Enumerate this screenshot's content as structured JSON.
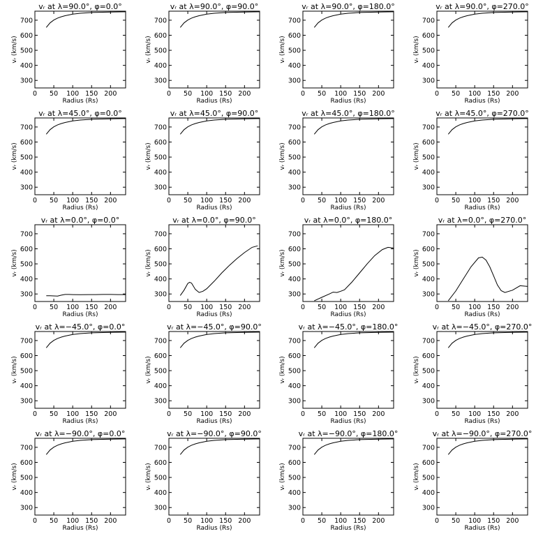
{
  "figure": {
    "xlabel": "Radius (Rs)",
    "ylabel": "vᵣ (km/s)",
    "xticks": [
      0,
      50,
      100,
      150,
      200
    ],
    "yticks": [
      300,
      400,
      500,
      600,
      700
    ],
    "xlim": [
      0,
      240
    ],
    "ylim": [
      250,
      760
    ]
  },
  "chart_data": [
    {
      "type": "line",
      "title": "vᵣ at λ=90.0°, φ=0.0°",
      "xlabel": "Radius (Rs)",
      "ylabel": "vᵣ (km/s)",
      "xlim": [
        0,
        240
      ],
      "ylim": [
        250,
        760
      ],
      "grid": false,
      "series": [
        {
          "x": [
            30,
            40,
            50,
            60,
            70,
            80,
            100,
            120,
            150,
            180,
            210,
            240
          ],
          "y": [
            652,
            682,
            701,
            714,
            723,
            730,
            740,
            746,
            751,
            753,
            755,
            756
          ]
        }
      ]
    },
    {
      "type": "line",
      "title": "vᵣ at λ=90.0°, φ=90.0°",
      "xlabel": "Radius (Rs)",
      "ylabel": "vᵣ (km/s)",
      "xlim": [
        0,
        240
      ],
      "ylim": [
        250,
        760
      ],
      "grid": false,
      "series": [
        {
          "x": [
            30,
            40,
            50,
            60,
            70,
            80,
            100,
            120,
            150,
            180,
            210,
            240
          ],
          "y": [
            652,
            682,
            701,
            714,
            723,
            730,
            740,
            746,
            751,
            753,
            755,
            756
          ]
        }
      ]
    },
    {
      "type": "line",
      "title": "vᵣ at λ=90.0°, φ=180.0°",
      "xlabel": "Radius (Rs)",
      "ylabel": "vᵣ (km/s)",
      "xlim": [
        0,
        240
      ],
      "ylim": [
        250,
        760
      ],
      "grid": false,
      "series": [
        {
          "x": [
            30,
            40,
            50,
            60,
            70,
            80,
            100,
            120,
            150,
            180,
            210,
            240
          ],
          "y": [
            652,
            682,
            701,
            714,
            723,
            730,
            740,
            746,
            751,
            753,
            755,
            756
          ]
        }
      ]
    },
    {
      "type": "line",
      "title": "vᵣ at λ=90.0°, φ=270.0°",
      "xlabel": "Radius (Rs)",
      "ylabel": "vᵣ (km/s)",
      "xlim": [
        0,
        240
      ],
      "ylim": [
        250,
        760
      ],
      "grid": false,
      "series": [
        {
          "x": [
            30,
            40,
            50,
            60,
            70,
            80,
            100,
            120,
            150,
            180,
            210,
            240
          ],
          "y": [
            652,
            682,
            701,
            714,
            723,
            730,
            740,
            746,
            751,
            753,
            755,
            756
          ]
        }
      ]
    },
    {
      "type": "line",
      "title": "vᵣ at λ=45.0°, φ=0.0°",
      "xlabel": "Radius (Rs)",
      "ylabel": "vᵣ (km/s)",
      "xlim": [
        0,
        240
      ],
      "ylim": [
        250,
        760
      ],
      "grid": false,
      "series": [
        {
          "x": [
            30,
            40,
            50,
            60,
            70,
            80,
            100,
            120,
            150,
            180,
            210,
            240
          ],
          "y": [
            652,
            682,
            701,
            714,
            723,
            730,
            740,
            746,
            751,
            753,
            755,
            756
          ]
        }
      ]
    },
    {
      "type": "line",
      "title": "vᵣ at λ=45.0°, φ=90.0°",
      "xlabel": "Radius (Rs)",
      "ylabel": "vᵣ (km/s)",
      "xlim": [
        0,
        240
      ],
      "ylim": [
        250,
        760
      ],
      "grid": false,
      "series": [
        {
          "x": [
            30,
            40,
            50,
            60,
            70,
            80,
            100,
            120,
            150,
            180,
            210,
            240
          ],
          "y": [
            652,
            682,
            701,
            714,
            723,
            730,
            740,
            746,
            751,
            753,
            755,
            756
          ]
        }
      ]
    },
    {
      "type": "line",
      "title": "vᵣ at λ=45.0°, φ=180.0°",
      "xlabel": "Radius (Rs)",
      "ylabel": "vᵣ (km/s)",
      "xlim": [
        0,
        240
      ],
      "ylim": [
        250,
        760
      ],
      "grid": false,
      "series": [
        {
          "x": [
            30,
            40,
            50,
            60,
            70,
            80,
            100,
            120,
            150,
            180,
            210,
            240
          ],
          "y": [
            652,
            682,
            701,
            714,
            723,
            730,
            740,
            746,
            751,
            753,
            755,
            756
          ]
        }
      ]
    },
    {
      "type": "line",
      "title": "vᵣ at λ=45.0°, φ=270.0°",
      "xlabel": "Radius (Rs)",
      "ylabel": "vᵣ (km/s)",
      "xlim": [
        0,
        240
      ],
      "ylim": [
        250,
        760
      ],
      "grid": false,
      "series": [
        {
          "x": [
            30,
            40,
            50,
            60,
            70,
            80,
            100,
            120,
            150,
            180,
            210,
            240
          ],
          "y": [
            652,
            682,
            701,
            714,
            723,
            730,
            740,
            746,
            751,
            753,
            755,
            756
          ]
        }
      ]
    },
    {
      "type": "line",
      "title": "vᵣ at λ=0.0°, φ=0.0°",
      "xlabel": "Radius (Rs)",
      "ylabel": "vᵣ (km/s)",
      "xlim": [
        0,
        240
      ],
      "ylim": [
        250,
        760
      ],
      "grid": false,
      "series": [
        {
          "x": [
            30,
            40,
            50,
            60,
            70,
            80,
            90,
            100,
            120,
            140,
            160,
            180,
            200,
            220,
            240
          ],
          "y": [
            288,
            288,
            287,
            286,
            292,
            297,
            297,
            296,
            295,
            296,
            296,
            297,
            297,
            296,
            296
          ]
        }
      ]
    },
    {
      "type": "line",
      "title": "vᵣ at λ=0.0°, φ=90.0°",
      "xlabel": "Radius (Rs)",
      "ylabel": "vᵣ (km/s)",
      "xlim": [
        0,
        240
      ],
      "ylim": [
        250,
        760
      ],
      "grid": false,
      "series": [
        {
          "x": [
            30,
            40,
            50,
            55,
            60,
            70,
            80,
            90,
            100,
            120,
            140,
            160,
            180,
            200,
            220,
            235
          ],
          "y": [
            290,
            325,
            370,
            378,
            372,
            330,
            310,
            318,
            335,
            385,
            440,
            490,
            535,
            575,
            610,
            620
          ]
        }
      ]
    },
    {
      "type": "line",
      "title": "vᵣ at λ=0.0°, φ=180.0°",
      "xlabel": "Radius (Rs)",
      "ylabel": "vᵣ (km/s)",
      "xlim": [
        0,
        240
      ],
      "ylim": [
        250,
        760
      ],
      "grid": false,
      "series": [
        {
          "x": [
            30,
            50,
            70,
            80,
            90,
            100,
            110,
            130,
            150,
            170,
            190,
            210,
            225,
            240
          ],
          "y": [
            255,
            278,
            300,
            312,
            310,
            318,
            328,
            380,
            440,
            500,
            555,
            595,
            610,
            605
          ]
        }
      ]
    },
    {
      "type": "line",
      "title": "vᵣ at λ=0.0°, φ=270.0°",
      "xlabel": "Radius (Rs)",
      "ylabel": "vᵣ (km/s)",
      "xlim": [
        0,
        240
      ],
      "ylim": [
        250,
        760
      ],
      "grid": false,
      "series": [
        {
          "x": [
            30,
            50,
            70,
            90,
            110,
            120,
            130,
            140,
            150,
            160,
            170,
            180,
            200,
            220,
            240
          ],
          "y": [
            255,
            320,
            400,
            480,
            540,
            545,
            525,
            480,
            420,
            360,
            322,
            310,
            325,
            355,
            350
          ]
        }
      ]
    },
    {
      "type": "line",
      "title": "vᵣ at λ=−45.0°, φ=0.0°",
      "xlabel": "Radius (Rs)",
      "ylabel": "vᵣ (km/s)",
      "xlim": [
        0,
        240
      ],
      "ylim": [
        250,
        760
      ],
      "grid": false,
      "series": [
        {
          "x": [
            30,
            40,
            50,
            60,
            70,
            80,
            100,
            120,
            150,
            180,
            210,
            240
          ],
          "y": [
            652,
            682,
            701,
            714,
            723,
            730,
            740,
            746,
            751,
            753,
            755,
            756
          ]
        }
      ]
    },
    {
      "type": "line",
      "title": "vᵣ at λ=−45.0°, φ=90.0°",
      "xlabel": "Radius (Rs)",
      "ylabel": "vᵣ (km/s)",
      "xlim": [
        0,
        240
      ],
      "ylim": [
        250,
        760
      ],
      "grid": false,
      "series": [
        {
          "x": [
            30,
            40,
            50,
            60,
            70,
            80,
            100,
            120,
            150,
            180,
            210,
            240
          ],
          "y": [
            652,
            682,
            701,
            714,
            723,
            730,
            740,
            746,
            751,
            753,
            755,
            756
          ]
        }
      ]
    },
    {
      "type": "line",
      "title": "vᵣ at λ=−45.0°, φ=180.0°",
      "xlabel": "Radius (Rs)",
      "ylabel": "vᵣ (km/s)",
      "xlim": [
        0,
        240
      ],
      "ylim": [
        250,
        760
      ],
      "grid": false,
      "series": [
        {
          "x": [
            30,
            40,
            50,
            60,
            70,
            80,
            100,
            120,
            150,
            180,
            210,
            240
          ],
          "y": [
            652,
            682,
            701,
            714,
            723,
            730,
            740,
            746,
            751,
            753,
            755,
            756
          ]
        }
      ]
    },
    {
      "type": "line",
      "title": "vᵣ at λ=−45.0°, φ=270.0°",
      "xlabel": "Radius (Rs)",
      "ylabel": "vᵣ (km/s)",
      "xlim": [
        0,
        240
      ],
      "ylim": [
        250,
        760
      ],
      "grid": false,
      "series": [
        {
          "x": [
            30,
            40,
            50,
            60,
            70,
            80,
            100,
            120,
            150,
            180,
            210,
            240
          ],
          "y": [
            652,
            682,
            701,
            714,
            723,
            730,
            740,
            746,
            751,
            753,
            755,
            756
          ]
        }
      ]
    },
    {
      "type": "line",
      "title": "vᵣ at λ=−90.0°, φ=0.0°",
      "xlabel": "Radius (Rs)",
      "ylabel": "vᵣ (km/s)",
      "xlim": [
        0,
        240
      ],
      "ylim": [
        250,
        760
      ],
      "grid": false,
      "series": [
        {
          "x": [
            30,
            40,
            50,
            60,
            70,
            80,
            100,
            120,
            150,
            180,
            210,
            240
          ],
          "y": [
            652,
            682,
            701,
            714,
            723,
            730,
            740,
            746,
            751,
            753,
            755,
            756
          ]
        }
      ]
    },
    {
      "type": "line",
      "title": "vᵣ at λ=−90.0°, φ=90.0°",
      "xlabel": "Radius (Rs)",
      "ylabel": "vᵣ (km/s)",
      "xlim": [
        0,
        240
      ],
      "ylim": [
        250,
        760
      ],
      "grid": false,
      "series": [
        {
          "x": [
            30,
            40,
            50,
            60,
            70,
            80,
            100,
            120,
            150,
            180,
            210,
            240
          ],
          "y": [
            652,
            682,
            701,
            714,
            723,
            730,
            740,
            746,
            751,
            753,
            755,
            756
          ]
        }
      ]
    },
    {
      "type": "line",
      "title": "vᵣ at λ=−90.0°, φ=180.0°",
      "xlabel": "Radius (Rs)",
      "ylabel": "vᵣ (km/s)",
      "xlim": [
        0,
        240
      ],
      "ylim": [
        250,
        760
      ],
      "grid": false,
      "series": [
        {
          "x": [
            30,
            40,
            50,
            60,
            70,
            80,
            100,
            120,
            150,
            180,
            210,
            240
          ],
          "y": [
            652,
            682,
            701,
            714,
            723,
            730,
            740,
            746,
            751,
            753,
            755,
            756
          ]
        }
      ]
    },
    {
      "type": "line",
      "title": "vᵣ at λ=−90.0°, φ=270.0°",
      "xlabel": "Radius (Rs)",
      "ylabel": "vᵣ (km/s)",
      "xlim": [
        0,
        240
      ],
      "ylim": [
        250,
        760
      ],
      "grid": false,
      "series": [
        {
          "x": [
            30,
            40,
            50,
            60,
            70,
            80,
            100,
            120,
            150,
            180,
            210,
            240
          ],
          "y": [
            652,
            682,
            701,
            714,
            723,
            730,
            740,
            746,
            751,
            753,
            755,
            756
          ]
        }
      ]
    }
  ]
}
